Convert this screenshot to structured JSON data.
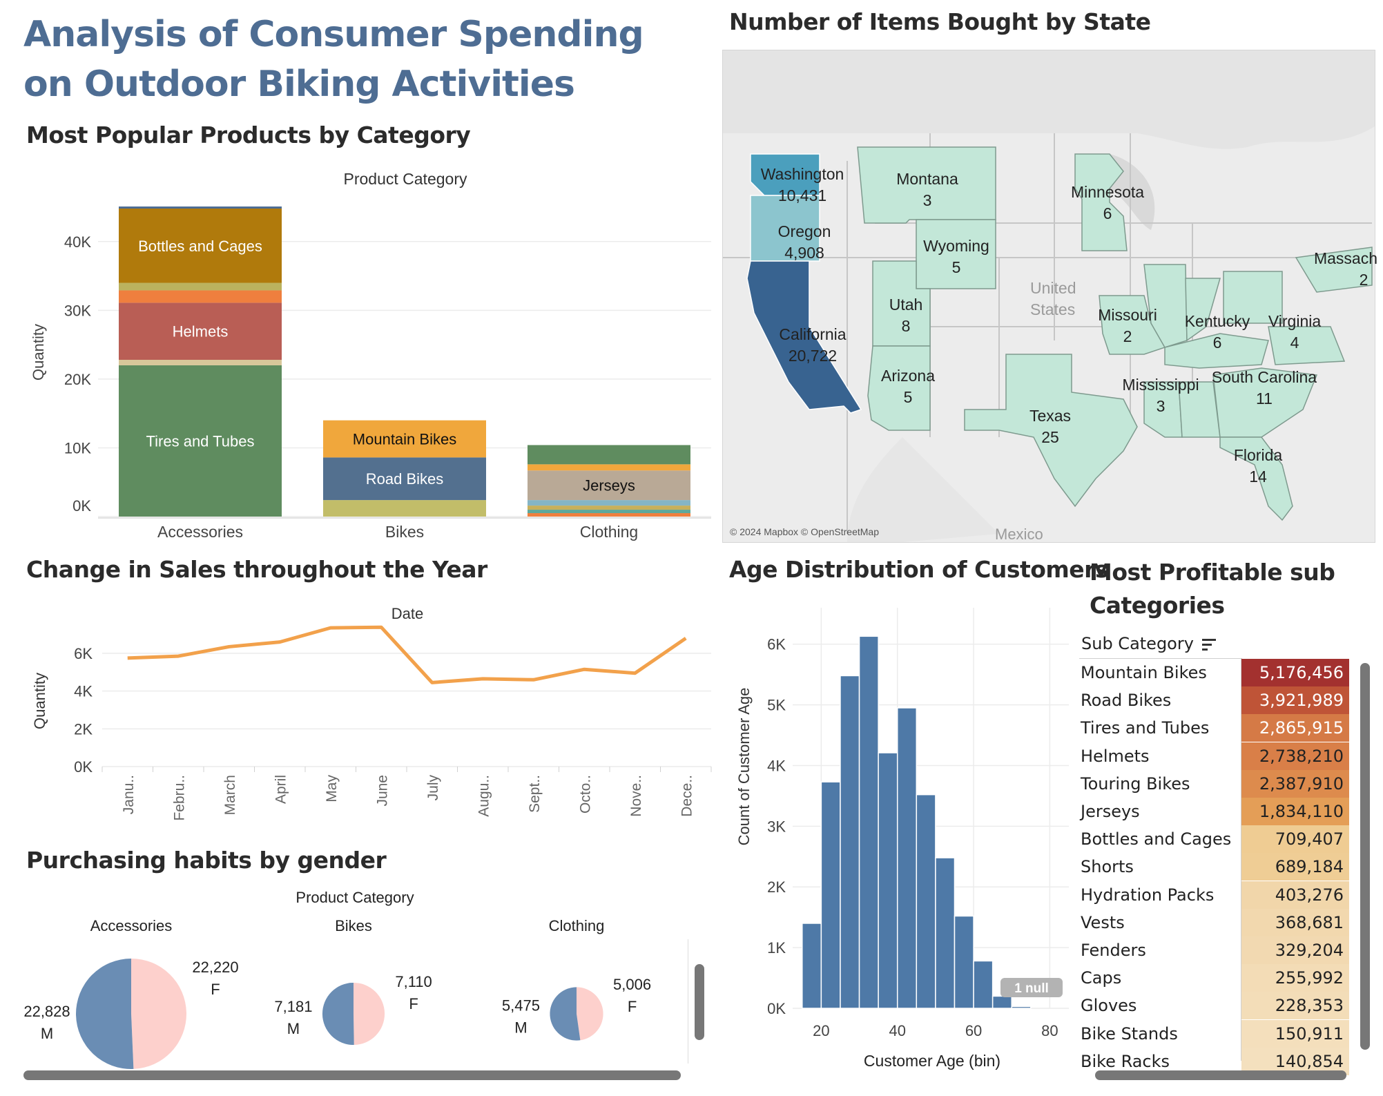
{
  "dashboard_title": "Analysis of Consumer Spending on Outdoor Biking Activities",
  "colors": {
    "title": "#4e6d93",
    "line": "#f2a14b",
    "histogram": "#4e79a7",
    "pie_male": "#6a8db4",
    "pie_female": "#fdd0cc",
    "map_dark": "#386390",
    "map_mid": "#4b9fbd",
    "map_light": "#8cc5ce",
    "map_lightest": "#c3e7d8"
  },
  "chart_data": [
    {
      "id": "products",
      "type": "bar",
      "stacked": true,
      "title": "Most Popular Products by Category",
      "header": "Product Category",
      "ylabel": "Quantity",
      "ylim": [
        0,
        45000
      ],
      "yticks": [
        "0K",
        "10K",
        "20K",
        "30K",
        "40K"
      ],
      "categories": [
        "Accessories",
        "Bikes",
        "Clothing"
      ],
      "stacks": [
        [
          {
            "label": "Tires and Tubes",
            "value": 22000,
            "color": "#5f8c5f"
          },
          {
            "label": "",
            "value": 800,
            "color": "#d8c79a"
          },
          {
            "label": "Helmets",
            "value": 8300,
            "color": "#b95e55"
          },
          {
            "label": "",
            "value": 1800,
            "color": "#ef7f3e"
          },
          {
            "label": "",
            "value": 1100,
            "color": "#bbb25e"
          },
          {
            "label": "Bottles and Cages",
            "value": 10800,
            "color": "#b07a0c"
          },
          {
            "label": "",
            "value": 300,
            "color": "#4e6d93"
          }
        ],
        [
          {
            "label": "",
            "value": 2400,
            "color": "#c2bd69"
          },
          {
            "label": "Road Bikes",
            "value": 6200,
            "color": "#53708f"
          },
          {
            "label": "Mountain Bikes",
            "value": 5400,
            "color": "#f0a73c"
          }
        ],
        [
          {
            "label": "",
            "value": 500,
            "color": "#ef7f3e"
          },
          {
            "label": "",
            "value": 500,
            "color": "#5ea89c"
          },
          {
            "label": "",
            "value": 600,
            "color": "#c7b05d"
          },
          {
            "label": "",
            "value": 800,
            "color": "#85b5c6"
          },
          {
            "label": "Jerseys",
            "value": 4300,
            "color": "#b9a996"
          },
          {
            "label": "",
            "value": 900,
            "color": "#f0a73c"
          },
          {
            "label": "",
            "value": 2800,
            "color": "#5f8c5f"
          }
        ]
      ]
    },
    {
      "id": "sales",
      "type": "line",
      "title": "Change in Sales throughout the Year",
      "header": "Date",
      "ylabel": "Quantity",
      "ylim": [
        0,
        7500
      ],
      "yticks": [
        "0K",
        "2K",
        "4K",
        "6K"
      ],
      "x": [
        "Janu..",
        "Febru..",
        "March",
        "April",
        "May",
        "June",
        "July",
        "Augu..",
        "Sept..",
        "Octo..",
        "Nove..",
        "Dece.."
      ],
      "values": [
        5750,
        5850,
        6350,
        6600,
        7350,
        7380,
        4450,
        4650,
        4600,
        5150,
        4950,
        6800
      ]
    },
    {
      "id": "gender",
      "type": "pie",
      "title": "Purchasing habits by gender",
      "header": "Product Category",
      "pies": [
        {
          "category": "Accessories",
          "M": 22828,
          "F": 22220,
          "M_label": "22,828",
          "F_label": "22,220"
        },
        {
          "category": "Bikes",
          "M": 7181,
          "F": 7110,
          "M_label": "7,181",
          "F_label": "7,110"
        },
        {
          "category": "Clothing",
          "M": 5475,
          "F": 5006,
          "M_label": "5,475",
          "F_label": "5,006"
        }
      ],
      "legend_m": "M",
      "legend_f": "F"
    },
    {
      "id": "age",
      "type": "bar",
      "title": "Age Distribution of Customers",
      "xlabel": "Customer Age (bin)",
      "ylabel": "Count of Customer Age",
      "xlim": [
        12.5,
        85
      ],
      "ylim": [
        0,
        6600
      ],
      "xticks": [
        20,
        40,
        60,
        80
      ],
      "yticks": [
        "0K",
        "1K",
        "2K",
        "3K",
        "4K",
        "5K",
        "6K"
      ],
      "bin_start": [
        15,
        20,
        25,
        30,
        35,
        40,
        45,
        50,
        55,
        60,
        65,
        70
      ],
      "bin_width": 5,
      "values": [
        1400,
        3730,
        5480,
        6130,
        4210,
        4950,
        3520,
        2480,
        1520,
        780,
        200,
        30
      ],
      "null_label": "1 null"
    }
  ],
  "map": {
    "title": "Number of Items Bought by State",
    "country_label": "United States",
    "mexico_label": "Mexico",
    "credit": "© 2024 Mapbox © OpenStreetMap",
    "states": [
      {
        "name": "Washington",
        "value": "10,431"
      },
      {
        "name": "Oregon",
        "value": "4,908"
      },
      {
        "name": "California",
        "value": "20,722"
      },
      {
        "name": "Montana",
        "value": "3"
      },
      {
        "name": "Wyoming",
        "value": "5"
      },
      {
        "name": "Utah",
        "value": "8"
      },
      {
        "name": "Arizona",
        "value": "5"
      },
      {
        "name": "Texas",
        "value": "25"
      },
      {
        "name": "Minnesota",
        "value": "6"
      },
      {
        "name": "Missouri",
        "value": "2"
      },
      {
        "name": "Mississippi",
        "value": "3"
      },
      {
        "name": "Kentucky",
        "value": "6"
      },
      {
        "name": "Virginia",
        "value": "4"
      },
      {
        "name": "South Carolina",
        "value": "11"
      },
      {
        "name": "Florida",
        "value": "14"
      },
      {
        "name": "Massach",
        "value": "2"
      }
    ]
  },
  "subcategories": {
    "title": "Most Profitable sub Categories",
    "header": "Sub Category",
    "rows": [
      {
        "name": "Mountain Bikes",
        "value": "5,176,456",
        "color": "#a3312f",
        "text": "#ffffff"
      },
      {
        "name": "Road Bikes",
        "value": "3,921,989",
        "color": "#bf5437",
        "text": "#ffffff"
      },
      {
        "name": "Tires and Tubes",
        "value": "2,865,915",
        "color": "#d57a46",
        "text": "#ffffff"
      },
      {
        "name": "Helmets",
        "value": "2,738,210",
        "color": "#d97f48",
        "text": "#222222"
      },
      {
        "name": "Touring Bikes",
        "value": "2,387,910",
        "color": "#dd8b4d",
        "text": "#222222"
      },
      {
        "name": "Jerseys",
        "value": "1,834,110",
        "color": "#e49e57",
        "text": "#222222"
      },
      {
        "name": "Bottles and Cages",
        "value": "709,407",
        "color": "#efcc93",
        "text": "#222222"
      },
      {
        "name": "Shorts",
        "value": "689,184",
        "color": "#efcd95",
        "text": "#222222"
      },
      {
        "name": "Hydration Packs",
        "value": "403,276",
        "color": "#f1d6aa",
        "text": "#222222"
      },
      {
        "name": "Vests",
        "value": "368,681",
        "color": "#f2d8ae",
        "text": "#222222"
      },
      {
        "name": "Fenders",
        "value": "329,204",
        "color": "#f2d9b1",
        "text": "#222222"
      },
      {
        "name": "Caps",
        "value": "255,992",
        "color": "#f3dcb6",
        "text": "#222222"
      },
      {
        "name": "Gloves",
        "value": "228,353",
        "color": "#f3ddb8",
        "text": "#222222"
      },
      {
        "name": "Bike Stands",
        "value": "150,911",
        "color": "#f4dfbc",
        "text": "#222222"
      },
      {
        "name": "Bike Racks",
        "value": "140,854",
        "color": "#f4e0be",
        "text": "#222222"
      }
    ]
  }
}
